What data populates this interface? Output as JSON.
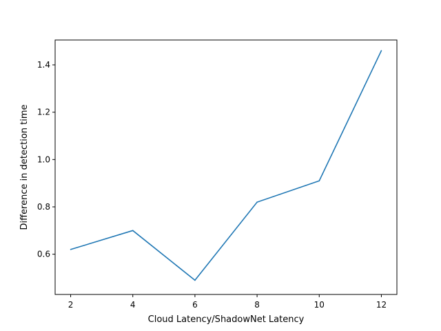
{
  "chart_data": {
    "type": "line",
    "title": "",
    "xlabel": "Cloud Latency/ShadowNet Latency",
    "ylabel": "Difference in detection time",
    "xlim": [
      1.5,
      12.5
    ],
    "ylim": [
      0.43,
      1.505
    ],
    "xticks": [
      2,
      4,
      6,
      8,
      10,
      12
    ],
    "xtick_labels": [
      "2",
      "4",
      "6",
      "8",
      "10",
      "12"
    ],
    "yticks": [
      0.6,
      0.8,
      1.0,
      1.2,
      1.4
    ],
    "ytick_labels": [
      "0.6",
      "0.8",
      "1.0",
      "1.2",
      "1.4"
    ],
    "grid": false,
    "legend": "none",
    "series": [
      {
        "color": "#1f77b4",
        "x": [
          2,
          4,
          6,
          8,
          10,
          12
        ],
        "y": [
          0.62,
          0.7,
          0.49,
          0.82,
          0.91,
          1.46
        ]
      }
    ]
  }
}
